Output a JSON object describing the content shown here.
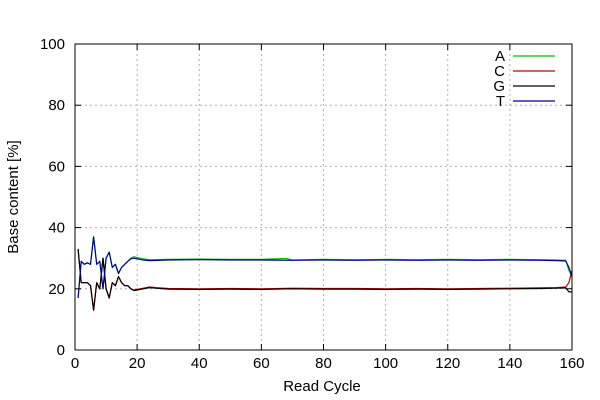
{
  "chart_data": {
    "type": "line",
    "title": "",
    "xlabel": "Read Cycle",
    "ylabel": "Base content [%]",
    "xlim": [
      0,
      160
    ],
    "ylim": [
      0,
      100
    ],
    "xticks": [
      0,
      20,
      40,
      60,
      80,
      100,
      120,
      140,
      160
    ],
    "yticks": [
      0,
      20,
      40,
      60,
      80,
      100
    ],
    "grid": true,
    "legend_position": "top-right",
    "series": [
      {
        "name": "A",
        "color": "#00c000",
        "points": [
          [
            1,
            17
          ],
          [
            2,
            29
          ],
          [
            3,
            28
          ],
          [
            4,
            28.5
          ],
          [
            5,
            28
          ],
          [
            6,
            37
          ],
          [
            7,
            28
          ],
          [
            8,
            29
          ],
          [
            9,
            20
          ],
          [
            10,
            30
          ],
          [
            11,
            32
          ],
          [
            12,
            27
          ],
          [
            13,
            28
          ],
          [
            14,
            25
          ],
          [
            15,
            27
          ],
          [
            16,
            28
          ],
          [
            17,
            29
          ],
          [
            18,
            30
          ],
          [
            19,
            30.5
          ],
          [
            20,
            30.2
          ],
          [
            22,
            29.8
          ],
          [
            24,
            29.5
          ],
          [
            30,
            29.6
          ],
          [
            40,
            29.7
          ],
          [
            50,
            29.6
          ],
          [
            60,
            29.6
          ],
          [
            68,
            29.9
          ],
          [
            70,
            29.4
          ],
          [
            80,
            29.6
          ],
          [
            90,
            29.5
          ],
          [
            100,
            29.6
          ],
          [
            110,
            29.5
          ],
          [
            120,
            29.6
          ],
          [
            130,
            29.5
          ],
          [
            140,
            29.6
          ],
          [
            150,
            29.5
          ],
          [
            155,
            29.4
          ],
          [
            158,
            29.3
          ],
          [
            159,
            26
          ],
          [
            160,
            24
          ]
        ]
      },
      {
        "name": "C",
        "color": "#c00000",
        "points": [
          [
            1,
            33
          ],
          [
            2,
            22
          ],
          [
            3,
            22
          ],
          [
            4,
            22
          ],
          [
            5,
            21
          ],
          [
            6,
            13
          ],
          [
            7,
            22
          ],
          [
            8,
            20
          ],
          [
            9,
            30
          ],
          [
            10,
            20
          ],
          [
            11,
            17
          ],
          [
            12,
            22
          ],
          [
            13,
            21
          ],
          [
            14,
            24
          ],
          [
            15,
            22
          ],
          [
            16,
            21
          ],
          [
            17,
            21
          ],
          [
            18,
            20
          ],
          [
            19,
            19.6
          ],
          [
            20,
            19.8
          ],
          [
            22,
            20.2
          ],
          [
            24,
            20.6
          ],
          [
            26,
            20.4
          ],
          [
            30,
            20.1
          ],
          [
            40,
            20.0
          ],
          [
            50,
            20.1
          ],
          [
            60,
            20.0
          ],
          [
            70,
            20.2
          ],
          [
            80,
            20.1
          ],
          [
            90,
            20.1
          ],
          [
            100,
            20.0
          ],
          [
            110,
            20.1
          ],
          [
            120,
            20.0
          ],
          [
            130,
            20.1
          ],
          [
            140,
            20.2
          ],
          [
            150,
            20.3
          ],
          [
            155,
            20.4
          ],
          [
            158,
            20.6
          ],
          [
            159,
            22
          ],
          [
            160,
            26
          ]
        ]
      },
      {
        "name": "G",
        "color": "#000000",
        "points": [
          [
            1,
            33
          ],
          [
            2,
            22
          ],
          [
            3,
            22
          ],
          [
            4,
            22
          ],
          [
            5,
            21
          ],
          [
            6,
            13
          ],
          [
            7,
            22
          ],
          [
            8,
            20
          ],
          [
            9,
            30
          ],
          [
            10,
            20
          ],
          [
            11,
            17
          ],
          [
            12,
            22
          ],
          [
            13,
            21
          ],
          [
            14,
            24
          ],
          [
            15,
            22
          ],
          [
            16,
            21
          ],
          [
            17,
            21
          ],
          [
            18,
            20
          ],
          [
            19,
            19.4
          ],
          [
            20,
            19.6
          ],
          [
            22,
            20.0
          ],
          [
            24,
            20.4
          ],
          [
            26,
            20.2
          ],
          [
            30,
            19.9
          ],
          [
            40,
            19.8
          ],
          [
            50,
            19.9
          ],
          [
            60,
            19.8
          ],
          [
            70,
            20.0
          ],
          [
            80,
            19.9
          ],
          [
            90,
            19.9
          ],
          [
            100,
            19.8
          ],
          [
            110,
            19.9
          ],
          [
            120,
            19.8
          ],
          [
            130,
            19.9
          ],
          [
            140,
            20.0
          ],
          [
            150,
            20.1
          ],
          [
            155,
            20.2
          ],
          [
            158,
            20.3
          ],
          [
            159,
            19
          ],
          [
            160,
            19
          ]
        ]
      },
      {
        "name": "T",
        "color": "#0000a0",
        "points": [
          [
            1,
            17
          ],
          [
            2,
            29
          ],
          [
            3,
            28
          ],
          [
            4,
            28.5
          ],
          [
            5,
            28
          ],
          [
            6,
            37
          ],
          [
            7,
            28
          ],
          [
            8,
            29
          ],
          [
            9,
            20
          ],
          [
            10,
            30
          ],
          [
            11,
            32
          ],
          [
            12,
            27
          ],
          [
            13,
            28
          ],
          [
            14,
            25
          ],
          [
            15,
            27
          ],
          [
            16,
            28
          ],
          [
            17,
            29
          ],
          [
            18,
            29.8
          ],
          [
            19,
            30
          ],
          [
            20,
            29.8
          ],
          [
            22,
            29.4
          ],
          [
            24,
            29.2
          ],
          [
            30,
            29.4
          ],
          [
            40,
            29.5
          ],
          [
            50,
            29.4
          ],
          [
            60,
            29.4
          ],
          [
            70,
            29.3
          ],
          [
            80,
            29.4
          ],
          [
            90,
            29.3
          ],
          [
            100,
            29.4
          ],
          [
            110,
            29.3
          ],
          [
            120,
            29.4
          ],
          [
            130,
            29.3
          ],
          [
            140,
            29.4
          ],
          [
            150,
            29.3
          ],
          [
            155,
            29.2
          ],
          [
            158,
            29.1
          ],
          [
            159,
            27
          ],
          [
            160,
            24
          ]
        ]
      }
    ]
  }
}
